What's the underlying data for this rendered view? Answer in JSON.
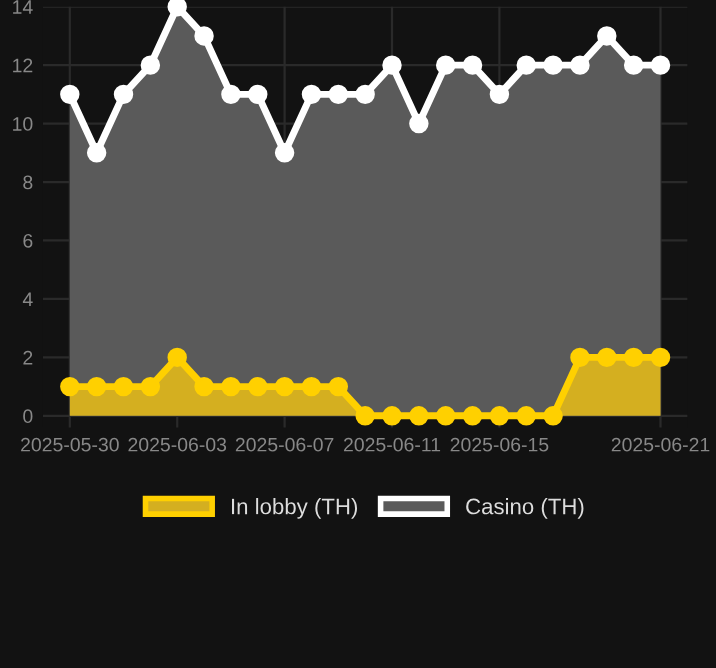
{
  "chart_data": {
    "type": "area",
    "x": [
      "2025-05-30",
      "2025-05-31",
      "2025-06-01",
      "2025-06-02",
      "2025-06-03",
      "2025-06-04",
      "2025-06-05",
      "2025-06-06",
      "2025-06-07",
      "2025-06-08",
      "2025-06-09",
      "2025-06-10",
      "2025-06-11",
      "2025-06-12",
      "2025-06-13",
      "2025-06-14",
      "2025-06-15",
      "2025-06-16",
      "2025-06-17",
      "2025-06-18",
      "2025-06-19",
      "2025-06-20",
      "2025-06-21"
    ],
    "series": [
      {
        "name": "Casino (TH)",
        "color": "#ffffff",
        "values": [
          11,
          9,
          11,
          12,
          14,
          13,
          11,
          11,
          9,
          11,
          11,
          11,
          12,
          10,
          12,
          12,
          11,
          12,
          12,
          12,
          13,
          12,
          12
        ]
      },
      {
        "name": "In lobby (TH)",
        "color": "#ffd000",
        "values": [
          1,
          1,
          1,
          1,
          2,
          1,
          1,
          1,
          1,
          1,
          1,
          0,
          0,
          0,
          0,
          0,
          0,
          0,
          0,
          2,
          2,
          2,
          2
        ]
      }
    ],
    "xlim": [
      "2025-05-29",
      "2025-06-22"
    ],
    "xticks": [
      "2025-05-30",
      "2025-06-03",
      "2025-06-07",
      "2025-06-11",
      "2025-06-15",
      "2025-06-21"
    ],
    "ylim": [
      -0.4,
      14
    ],
    "yticks": [
      0,
      2,
      4,
      6,
      8,
      10,
      12,
      14
    ],
    "grid": true,
    "legend": "bottom",
    "marker": "circle"
  }
}
